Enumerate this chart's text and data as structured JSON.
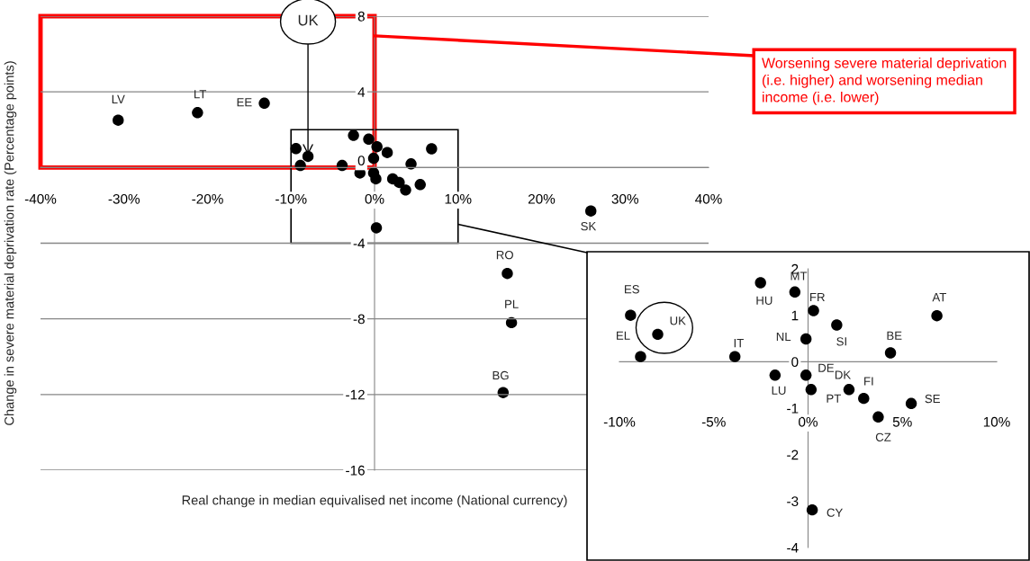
{
  "chart_data": [
    {
      "type": "scatter",
      "xlabel": "Real change in median equivalised net income (National currency)",
      "ylabel": "Change in severe material deprivation rate (Percentage points)",
      "series": [
        {
          "color": "#000000",
          "x": [
            -30.7,
            -21.2,
            -13.2,
            25.9,
            15.9,
            16.4,
            15.4,
            -9.41,
            -7.97,
            -8.88,
            -3.88,
            -2.52,
            -0.7,
            0.29,
            -0.11,
            1.52,
            4.37,
            6.83,
            -1.75,
            -0.11,
            0.16,
            2.17,
            2.95,
            3.72,
            5.47,
            0.22
          ],
          "values": [
            2.5,
            2.9,
            3.4,
            -2.3,
            -5.6,
            -8.2,
            -11.9,
            1.0,
            0.59,
            0.11,
            0.11,
            1.7,
            1.5,
            1.1,
            0.49,
            0.79,
            0.19,
            0.99,
            -0.29,
            -0.29,
            -0.6,
            -0.6,
            -0.79,
            -1.19,
            -0.9,
            -3.19
          ]
        }
      ],
      "xlim": [
        -40,
        40
      ],
      "ylim": [
        -16,
        8
      ],
      "xticks": [
        {
          "value": -40,
          "label": "-40%"
        },
        {
          "value": -30,
          "label": "-30%"
        },
        {
          "value": -20,
          "label": "-20%"
        },
        {
          "value": -10,
          "label": "-10%"
        },
        {
          "value": 0,
          "label": "0%"
        },
        {
          "value": 10,
          "label": "10%"
        },
        {
          "value": 20,
          "label": "20%"
        },
        {
          "value": 30,
          "label": "30%"
        },
        {
          "value": 40,
          "label": "40%"
        }
      ],
      "yticks": [
        -16,
        -12,
        -8,
        -4,
        0,
        4,
        8
      ],
      "grid": "y",
      "marker": "circle",
      "annotations": [
        {
          "text": "LV",
          "x": -30.7,
          "y": 2.5
        },
        {
          "text": "LT",
          "x": -21.2,
          "y": 2.9
        },
        {
          "text": "EE",
          "x": -13.2,
          "y": 3.4
        },
        {
          "text": "SK",
          "x": 25.9,
          "y": -2.3
        },
        {
          "text": "RO",
          "x": 15.9,
          "y": -5.6
        },
        {
          "text": "PL",
          "x": 16.4,
          "y": -8.2
        },
        {
          "text": "BG",
          "x": 15.4,
          "y": -11.9
        },
        {
          "text": "UK",
          "x": -7.97,
          "y": 0.59
        },
        "Worsening severe material deprivation (i.e. higher) and worsening median income (i.e. lower)"
      ]
    },
    {
      "type": "scatter",
      "series": [
        {
          "color": "#000000",
          "x": [
            -9.41,
            -7.97,
            -8.88,
            -3.88,
            -2.52,
            -0.7,
            0.29,
            -0.11,
            1.52,
            4.37,
            6.83,
            -1.75,
            -0.11,
            0.16,
            2.17,
            2.95,
            3.72,
            5.47,
            0.22
          ],
          "values": [
            1.0,
            0.59,
            0.11,
            0.11,
            1.7,
            1.5,
            1.1,
            0.49,
            0.79,
            0.19,
            0.99,
            -0.29,
            -0.29,
            -0.6,
            -0.6,
            -0.79,
            -1.19,
            -0.9,
            -3.19
          ]
        }
      ],
      "xlim": [
        -10,
        10
      ],
      "ylim": [
        -4,
        2
      ],
      "xticks": [
        {
          "value": -10,
          "label": "-10%"
        },
        {
          "value": -5,
          "label": "-5%"
        },
        {
          "value": 0,
          "label": "0%"
        },
        {
          "value": 5,
          "label": "5%"
        },
        {
          "value": 10,
          "label": "10%"
        }
      ],
      "yticks": [
        -4,
        -3,
        -2,
        -1,
        0,
        1,
        2
      ],
      "marker": "circle",
      "annotations": [
        {
          "text": "ES",
          "x": -9.41,
          "y": 1.0
        },
        {
          "text": "UK",
          "x": -7.97,
          "y": 0.59
        },
        {
          "text": "EL",
          "x": -8.88,
          "y": 0.11
        },
        {
          "text": "IT",
          "x": -3.88,
          "y": 0.11
        },
        {
          "text": "HU",
          "x": -2.52,
          "y": 1.7
        },
        {
          "text": "MT",
          "x": -0.7,
          "y": 1.5
        },
        {
          "text": "FR",
          "x": 0.29,
          "y": 1.1
        },
        {
          "text": "NL",
          "x": -0.11,
          "y": 0.49
        },
        {
          "text": "SI",
          "x": 1.52,
          "y": 0.79
        },
        {
          "text": "BE",
          "x": 4.37,
          "y": 0.19
        },
        {
          "text": "AT",
          "x": 6.83,
          "y": 0.99
        },
        {
          "text": "LU",
          "x": -1.75,
          "y": -0.29
        },
        {
          "text": "DE",
          "x": -0.11,
          "y": -0.29
        },
        {
          "text": "PT",
          "x": 0.16,
          "y": -0.6
        },
        {
          "text": "DK",
          "x": 2.17,
          "y": -0.6
        },
        {
          "text": "FI",
          "x": 2.95,
          "y": -0.79
        },
        {
          "text": "CZ",
          "x": 3.72,
          "y": -1.19
        },
        {
          "text": "SE",
          "x": 5.47,
          "y": -0.9
        },
        {
          "text": "CY",
          "x": 0.22,
          "y": -3.19
        }
      ]
    }
  ]
}
